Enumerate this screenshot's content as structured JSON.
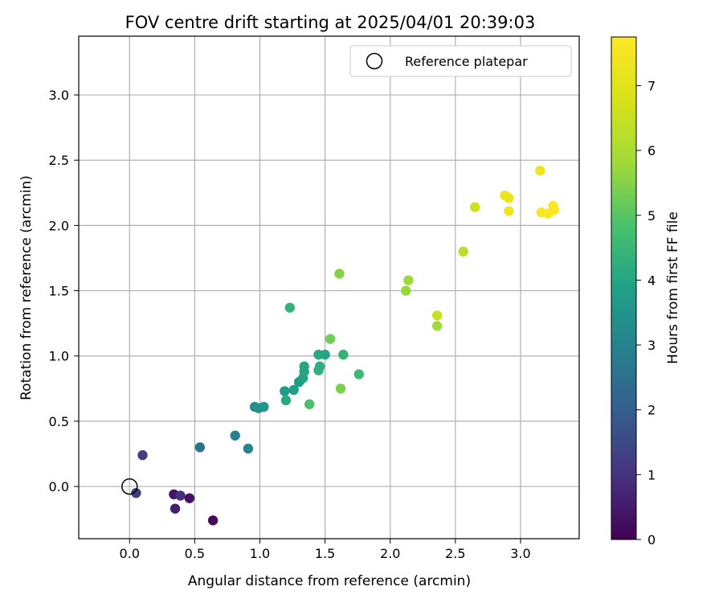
{
  "chart_data": {
    "type": "scatter",
    "title": "FOV centre drift starting at 2025/04/01 20:39:03",
    "xlabel": "Angular distance from reference (arcmin)",
    "ylabel": "Rotation from reference (arcmin)",
    "xlim": [
      -0.39,
      3.45
    ],
    "ylim": [
      -0.4,
      3.45
    ],
    "xticks": [
      "0.0",
      "0.5",
      "1.0",
      "1.5",
      "2.0",
      "2.5",
      "3.0"
    ],
    "yticks": [
      "0.0",
      "0.5",
      "1.0",
      "1.5",
      "2.0",
      "2.5",
      "3.0"
    ],
    "grid": true,
    "legend": {
      "placement": "top-right",
      "entries": [
        "Reference platepar"
      ]
    },
    "reference_point": {
      "x": 0.0,
      "y": 0.0,
      "label": "Reference platepar"
    },
    "colorbar": {
      "label": "Hours from first FF file",
      "range": [
        0,
        7.75
      ],
      "ticks": [
        "0",
        "1",
        "2",
        "3",
        "4",
        "5",
        "6",
        "7"
      ],
      "colormap": "viridis"
    },
    "series": [
      {
        "points": [
          {
            "x": 0.05,
            "y": -0.05,
            "c": 1.2
          },
          {
            "x": 0.1,
            "y": 0.24,
            "c": 1.3
          },
          {
            "x": 0.34,
            "y": -0.06,
            "c": 0.4
          },
          {
            "x": 0.35,
            "y": -0.17,
            "c": 0.6
          },
          {
            "x": 0.39,
            "y": -0.07,
            "c": 0.9
          },
          {
            "x": 0.46,
            "y": -0.09,
            "c": 0.3
          },
          {
            "x": 0.64,
            "y": -0.26,
            "c": 0.2
          },
          {
            "x": 0.54,
            "y": 0.3,
            "c": 2.6
          },
          {
            "x": 0.81,
            "y": 0.39,
            "c": 3.0
          },
          {
            "x": 0.91,
            "y": 0.29,
            "c": 3.1
          },
          {
            "x": 0.96,
            "y": 0.61,
            "c": 3.3
          },
          {
            "x": 0.99,
            "y": 0.6,
            "c": 3.4
          },
          {
            "x": 1.03,
            "y": 0.61,
            "c": 3.5
          },
          {
            "x": 1.19,
            "y": 0.73,
            "c": 3.7
          },
          {
            "x": 1.2,
            "y": 0.66,
            "c": 4.1
          },
          {
            "x": 1.26,
            "y": 0.74,
            "c": 3.8
          },
          {
            "x": 1.3,
            "y": 0.8,
            "c": 3.7
          },
          {
            "x": 1.33,
            "y": 0.83,
            "c": 3.9
          },
          {
            "x": 1.34,
            "y": 0.88,
            "c": 4.0
          },
          {
            "x": 1.34,
            "y": 0.92,
            "c": 4.0
          },
          {
            "x": 1.23,
            "y": 1.37,
            "c": 4.4
          },
          {
            "x": 1.38,
            "y": 0.63,
            "c": 4.8
          },
          {
            "x": 1.45,
            "y": 0.89,
            "c": 4.3
          },
          {
            "x": 1.46,
            "y": 0.92,
            "c": 4.3
          },
          {
            "x": 1.45,
            "y": 1.01,
            "c": 4.1
          },
          {
            "x": 1.5,
            "y": 1.01,
            "c": 4.0
          },
          {
            "x": 1.54,
            "y": 1.13,
            "c": 5.3
          },
          {
            "x": 1.61,
            "y": 1.63,
            "c": 5.5
          },
          {
            "x": 1.62,
            "y": 0.75,
            "c": 5.4
          },
          {
            "x": 1.64,
            "y": 1.01,
            "c": 4.4
          },
          {
            "x": 1.76,
            "y": 0.86,
            "c": 4.6
          },
          {
            "x": 2.12,
            "y": 1.5,
            "c": 5.7
          },
          {
            "x": 2.14,
            "y": 1.58,
            "c": 5.8
          },
          {
            "x": 2.36,
            "y": 1.23,
            "c": 5.8
          },
          {
            "x": 2.36,
            "y": 1.31,
            "c": 6.5
          },
          {
            "x": 2.56,
            "y": 1.8,
            "c": 6.3
          },
          {
            "x": 2.65,
            "y": 2.14,
            "c": 6.6
          },
          {
            "x": 2.88,
            "y": 2.23,
            "c": 7.3
          },
          {
            "x": 2.91,
            "y": 2.21,
            "c": 7.2
          },
          {
            "x": 2.91,
            "y": 2.11,
            "c": 7.4
          },
          {
            "x": 3.15,
            "y": 2.42,
            "c": 7.3
          },
          {
            "x": 3.16,
            "y": 2.1,
            "c": 7.6
          },
          {
            "x": 3.21,
            "y": 2.09,
            "c": 7.7
          },
          {
            "x": 3.25,
            "y": 2.15,
            "c": 7.7
          },
          {
            "x": 3.26,
            "y": 2.12,
            "c": 7.7
          }
        ]
      }
    ]
  }
}
